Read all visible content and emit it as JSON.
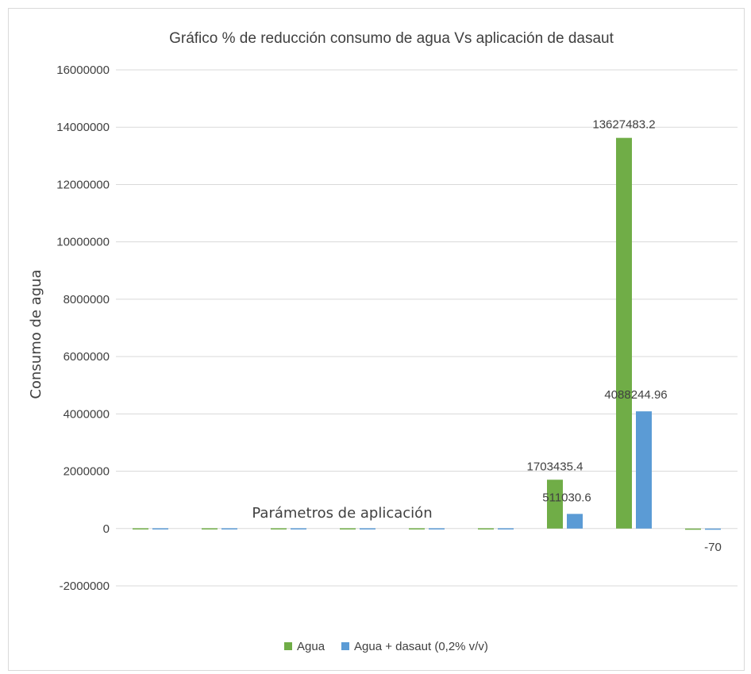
{
  "chart_data": {
    "type": "bar",
    "title": "Gráfico % de reducción consumo de agua Vs aplicación de dasaut",
    "xlabel": "Parámetros de aplicación",
    "ylabel": "Consumo de agua",
    "ylim": [
      -2000000,
      16000000
    ],
    "yticks": [
      -2000000,
      0,
      2000000,
      4000000,
      6000000,
      8000000,
      10000000,
      12000000,
      14000000,
      16000000
    ],
    "ytick_labels": [
      "-2000000",
      "0",
      "2000000",
      "4000000",
      "6000000",
      "8000000",
      "10000000",
      "12000000",
      "14000000",
      "16000000"
    ],
    "grid": true,
    "legend_position": "bottom",
    "categories": [
      "",
      "",
      "",
      "",
      "",
      "",
      "",
      "",
      ""
    ],
    "series": [
      {
        "name": "Agua",
        "color": "#70ad47",
        "values": [
          10000,
          10000,
          10000,
          10000,
          10000,
          10000,
          1703435.4,
          13627483.2,
          0
        ],
        "labels": [
          "",
          "",
          "",
          "",
          "",
          "",
          "1703435.4",
          "13627483.2",
          ""
        ]
      },
      {
        "name": "Agua + dasaut (0,2% v/v)",
        "color": "#5b9bd5",
        "values": [
          10000,
          10000,
          10000,
          10000,
          10000,
          10000,
          511030.6,
          4088244.96,
          -70
        ],
        "labels": [
          "",
          "",
          "",
          "",
          "",
          "",
          "511030.6",
          "4088244.96",
          "-70"
        ]
      }
    ]
  }
}
